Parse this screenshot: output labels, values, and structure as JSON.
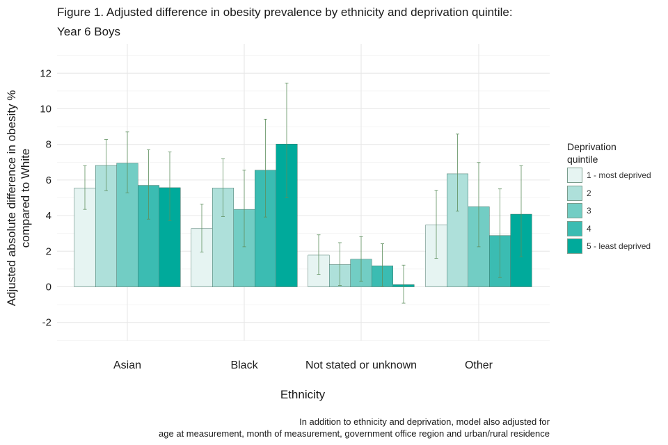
{
  "title_line1": "Figure 1. Adjusted difference in obesity prevalence by ethnicity and deprivation quintile:",
  "title_line2": "Year 6 Boys",
  "caption_line1": "In addition to ethnicity and deprivation, model also adjusted for",
  "caption_line2": "age at measurement, month of measurement, government office region and urban/rural residence",
  "legend_title_line1": "Deprivation",
  "legend_title_line2": "quintile",
  "colors": [
    "#e6f4f2",
    "#aee0da",
    "#72cdc4",
    "#3bbcb2",
    "#00aa9b"
  ],
  "chart_data": {
    "type": "bar",
    "title": "Figure 1. Adjusted difference in obesity prevalence by ethnicity and deprivation quintile: Year 6 Boys",
    "xlabel": "Ethnicity",
    "ylabel_line1": "Adjusted absolute difference in obesity %",
    "ylabel_line2": "compared to White",
    "ylim": [
      -3.2,
      13.2
    ],
    "yticks": [
      -2,
      0,
      2,
      4,
      6,
      8,
      10,
      12
    ],
    "ytick_labels": [
      "-2",
      "0",
      "2",
      "4",
      "6",
      "8",
      "10",
      "12"
    ],
    "categories": [
      "Asian",
      "Black",
      "Not stated or unknown",
      "Other"
    ],
    "series": [
      {
        "name": "1 - most deprived",
        "values": [
          5.55,
          3.27,
          1.78,
          3.48
        ],
        "lower": [
          4.35,
          1.95,
          0.7,
          1.6
        ],
        "upper": [
          6.8,
          4.65,
          2.92,
          5.42
        ]
      },
      {
        "name": "2",
        "values": [
          6.82,
          5.55,
          1.25,
          6.35
        ],
        "lower": [
          5.4,
          3.95,
          0.08,
          4.25
        ],
        "upper": [
          8.28,
          7.2,
          2.48,
          8.58
        ]
      },
      {
        "name": "3",
        "values": [
          6.95,
          4.35,
          1.55,
          4.5
        ],
        "lower": [
          5.28,
          2.25,
          0.32,
          2.25
        ],
        "upper": [
          8.7,
          6.55,
          2.82,
          6.98
        ]
      },
      {
        "name": "4",
        "values": [
          5.7,
          6.55,
          1.18,
          2.88
        ],
        "lower": [
          3.8,
          3.92,
          0.02,
          0.52
        ],
        "upper": [
          7.7,
          9.42,
          2.42,
          5.5
        ]
      },
      {
        "name": "5 - least deprived",
        "values": [
          5.57,
          8.02,
          0.12,
          4.08
        ],
        "lower": [
          3.72,
          5.0,
          -0.92,
          1.68
        ],
        "upper": [
          7.58,
          11.45,
          1.22,
          6.8
        ]
      }
    ]
  }
}
